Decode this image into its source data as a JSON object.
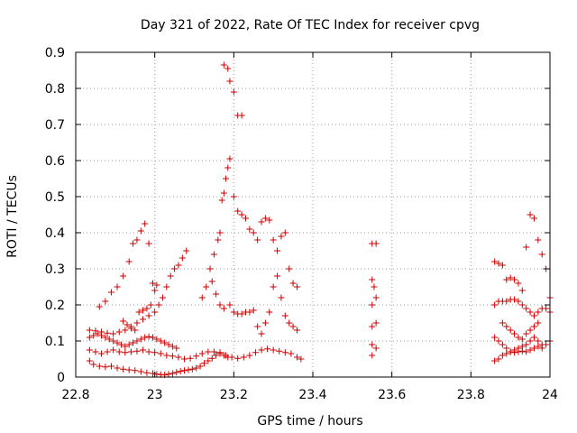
{
  "chart_data": {
    "type": "scatter",
    "title": "Day 321 of 2022, Rate Of TEC Index for receiver cpvg",
    "xlabel": "GPS time / hours",
    "ylabel": "ROTI / TECUs",
    "xlim": [
      22.8,
      24
    ],
    "ylim": [
      0,
      0.9
    ],
    "xticks": [
      22.8,
      23,
      23.2,
      23.4,
      23.6,
      23.8,
      24
    ],
    "xtick_labels": [
      "22.8",
      "23",
      "23.2",
      "23.4",
      "23.6",
      "23.8",
      "24"
    ],
    "yticks": [
      0,
      0.1,
      0.2,
      0.3,
      0.4,
      0.5,
      0.6,
      0.7,
      0.8,
      0.9
    ],
    "ytick_labels": [
      "0",
      "0.1",
      "0.2",
      "0.3",
      "0.4",
      "0.5",
      "0.6",
      "0.7",
      "0.8",
      "0.9"
    ],
    "grid": true,
    "legend": "none",
    "marker": "plus",
    "color": "#cc0000",
    "series": [
      {
        "points": [
          [
            22.835,
            0.045
          ],
          [
            22.845,
            0.035
          ],
          [
            22.86,
            0.03
          ],
          [
            22.875,
            0.028
          ],
          [
            22.89,
            0.03
          ],
          [
            22.905,
            0.025
          ],
          [
            22.92,
            0.022
          ],
          [
            22.935,
            0.02
          ],
          [
            22.95,
            0.018
          ],
          [
            22.965,
            0.015
          ],
          [
            22.98,
            0.012
          ],
          [
            22.995,
            0.01
          ],
          [
            23.005,
            0.008
          ],
          [
            23.015,
            0.007
          ],
          [
            23.025,
            0.006
          ],
          [
            23.035,
            0.008
          ],
          [
            23.045,
            0.01
          ],
          [
            23.055,
            0.013
          ],
          [
            23.065,
            0.016
          ],
          [
            23.075,
            0.018
          ],
          [
            23.085,
            0.02
          ],
          [
            23.095,
            0.022
          ],
          [
            23.105,
            0.025
          ],
          [
            23.115,
            0.03
          ],
          [
            23.125,
            0.038
          ],
          [
            23.135,
            0.045
          ],
          [
            23.145,
            0.052
          ],
          [
            23.155,
            0.06
          ],
          [
            23.165,
            0.065
          ],
          [
            23.175,
            0.06
          ],
          [
            23.185,
            0.055
          ],
          [
            22.835,
            0.075
          ],
          [
            22.85,
            0.07
          ],
          [
            22.865,
            0.065
          ],
          [
            22.88,
            0.07
          ],
          [
            22.895,
            0.075
          ],
          [
            22.91,
            0.07
          ],
          [
            22.925,
            0.068
          ],
          [
            22.94,
            0.07
          ],
          [
            22.955,
            0.072
          ],
          [
            22.97,
            0.075
          ],
          [
            22.985,
            0.07
          ],
          [
            23.0,
            0.068
          ],
          [
            23.015,
            0.065
          ],
          [
            23.03,
            0.06
          ],
          [
            23.045,
            0.058
          ],
          [
            23.06,
            0.055
          ],
          [
            23.075,
            0.05
          ],
          [
            23.09,
            0.052
          ],
          [
            23.105,
            0.058
          ],
          [
            23.12,
            0.065
          ],
          [
            23.135,
            0.07
          ],
          [
            23.15,
            0.07
          ],
          [
            23.165,
            0.068
          ],
          [
            23.18,
            0.06
          ],
          [
            23.195,
            0.055
          ],
          [
            23.21,
            0.052
          ],
          [
            23.225,
            0.055
          ],
          [
            23.24,
            0.06
          ],
          [
            23.255,
            0.068
          ],
          [
            23.27,
            0.075
          ],
          [
            23.285,
            0.078
          ],
          [
            23.3,
            0.075
          ],
          [
            23.315,
            0.072
          ],
          [
            23.33,
            0.068
          ],
          [
            23.345,
            0.065
          ],
          [
            23.36,
            0.055
          ],
          [
            23.37,
            0.05
          ],
          [
            22.835,
            0.11
          ],
          [
            22.845,
            0.115
          ],
          [
            22.855,
            0.12
          ],
          [
            22.865,
            0.115
          ],
          [
            22.875,
            0.11
          ],
          [
            22.885,
            0.105
          ],
          [
            22.895,
            0.1
          ],
          [
            22.905,
            0.095
          ],
          [
            22.915,
            0.09
          ],
          [
            22.925,
            0.085
          ],
          [
            22.935,
            0.09
          ],
          [
            22.945,
            0.095
          ],
          [
            22.955,
            0.1
          ],
          [
            22.965,
            0.105
          ],
          [
            22.975,
            0.11
          ],
          [
            22.985,
            0.112
          ],
          [
            22.995,
            0.11
          ],
          [
            23.005,
            0.105
          ],
          [
            23.015,
            0.1
          ],
          [
            23.025,
            0.095
          ],
          [
            23.035,
            0.09
          ],
          [
            23.045,
            0.085
          ],
          [
            23.055,
            0.08
          ],
          [
            22.835,
            0.13
          ],
          [
            22.85,
            0.128
          ],
          [
            22.865,
            0.125
          ],
          [
            22.88,
            0.122
          ],
          [
            22.895,
            0.12
          ],
          [
            22.91,
            0.125
          ],
          [
            22.925,
            0.13
          ],
          [
            22.94,
            0.14
          ],
          [
            22.955,
            0.15
          ],
          [
            22.97,
            0.16
          ],
          [
            22.985,
            0.17
          ],
          [
            23.0,
            0.18
          ],
          [
            23.01,
            0.2
          ],
          [
            23.02,
            0.22
          ],
          [
            23.03,
            0.25
          ],
          [
            23.04,
            0.28
          ],
          [
            23.05,
            0.3
          ],
          [
            23.06,
            0.31
          ],
          [
            23.07,
            0.33
          ],
          [
            23.08,
            0.35
          ],
          [
            22.86,
            0.195
          ],
          [
            22.875,
            0.21
          ],
          [
            22.89,
            0.235
          ],
          [
            22.905,
            0.25
          ],
          [
            22.92,
            0.28
          ],
          [
            22.935,
            0.32
          ],
          [
            22.945,
            0.37
          ],
          [
            22.955,
            0.38
          ],
          [
            22.965,
            0.405
          ],
          [
            22.975,
            0.425
          ],
          [
            22.985,
            0.37
          ],
          [
            22.92,
            0.155
          ],
          [
            22.93,
            0.145
          ],
          [
            22.94,
            0.135
          ],
          [
            22.95,
            0.13
          ],
          [
            22.96,
            0.18
          ],
          [
            22.97,
            0.185
          ],
          [
            22.98,
            0.19
          ],
          [
            22.99,
            0.2
          ],
          [
            22.995,
            0.26
          ],
          [
            23.005,
            0.255
          ],
          [
            23.0,
            0.24
          ],
          [
            23.12,
            0.22
          ],
          [
            23.13,
            0.25
          ],
          [
            23.14,
            0.3
          ],
          [
            23.15,
            0.34
          ],
          [
            23.16,
            0.38
          ],
          [
            23.165,
            0.4
          ],
          [
            23.17,
            0.49
          ],
          [
            23.175,
            0.51
          ],
          [
            23.18,
            0.55
          ],
          [
            23.185,
            0.58
          ],
          [
            23.19,
            0.605
          ],
          [
            23.2,
            0.5
          ],
          [
            23.21,
            0.46
          ],
          [
            23.22,
            0.45
          ],
          [
            23.23,
            0.44
          ],
          [
            23.24,
            0.41
          ],
          [
            23.25,
            0.4
          ],
          [
            23.26,
            0.38
          ],
          [
            23.27,
            0.43
          ],
          [
            23.28,
            0.44
          ],
          [
            23.29,
            0.435
          ],
          [
            23.3,
            0.38
          ],
          [
            23.31,
            0.35
          ],
          [
            23.32,
            0.39
          ],
          [
            23.33,
            0.4
          ],
          [
            23.34,
            0.3
          ],
          [
            23.35,
            0.26
          ],
          [
            23.36,
            0.25
          ],
          [
            23.175,
            0.865
          ],
          [
            23.185,
            0.855
          ],
          [
            23.19,
            0.82
          ],
          [
            23.2,
            0.79
          ],
          [
            23.21,
            0.725
          ],
          [
            23.22,
            0.725
          ],
          [
            23.19,
            0.2
          ],
          [
            23.2,
            0.18
          ],
          [
            23.21,
            0.175
          ],
          [
            23.22,
            0.175
          ],
          [
            23.23,
            0.18
          ],
          [
            23.24,
            0.18
          ],
          [
            23.25,
            0.185
          ],
          [
            23.26,
            0.14
          ],
          [
            23.27,
            0.12
          ],
          [
            23.28,
            0.15
          ],
          [
            23.29,
            0.18
          ],
          [
            23.3,
            0.25
          ],
          [
            23.31,
            0.28
          ],
          [
            23.32,
            0.22
          ],
          [
            23.33,
            0.17
          ],
          [
            23.34,
            0.15
          ],
          [
            23.35,
            0.14
          ],
          [
            23.36,
            0.13
          ],
          [
            23.145,
            0.265
          ],
          [
            23.155,
            0.23
          ],
          [
            23.165,
            0.2
          ],
          [
            23.175,
            0.19
          ],
          [
            23.55,
            0.37
          ],
          [
            23.56,
            0.37
          ],
          [
            23.55,
            0.27
          ],
          [
            23.555,
            0.25
          ],
          [
            23.56,
            0.22
          ],
          [
            23.55,
            0.2
          ],
          [
            23.56,
            0.15
          ],
          [
            23.55,
            0.14
          ],
          [
            23.55,
            0.09
          ],
          [
            23.56,
            0.08
          ],
          [
            23.55,
            0.06
          ],
          [
            23.86,
            0.32
          ],
          [
            23.87,
            0.315
          ],
          [
            23.88,
            0.31
          ],
          [
            23.86,
            0.2
          ],
          [
            23.87,
            0.21
          ],
          [
            23.88,
            0.21
          ],
          [
            23.89,
            0.21
          ],
          [
            23.9,
            0.215
          ],
          [
            23.91,
            0.215
          ],
          [
            23.92,
            0.21
          ],
          [
            23.93,
            0.2
          ],
          [
            23.94,
            0.19
          ],
          [
            23.95,
            0.18
          ],
          [
            23.96,
            0.17
          ],
          [
            23.97,
            0.18
          ],
          [
            23.98,
            0.19
          ],
          [
            23.99,
            0.19
          ],
          [
            24.0,
            0.18
          ],
          [
            23.86,
            0.11
          ],
          [
            23.87,
            0.1
          ],
          [
            23.88,
            0.09
          ],
          [
            23.89,
            0.08
          ],
          [
            23.9,
            0.07
          ],
          [
            23.91,
            0.075
          ],
          [
            23.92,
            0.08
          ],
          [
            23.93,
            0.085
          ],
          [
            23.94,
            0.09
          ],
          [
            23.95,
            0.1
          ],
          [
            23.96,
            0.11
          ],
          [
            23.97,
            0.1
          ],
          [
            23.98,
            0.09
          ],
          [
            23.99,
            0.09
          ],
          [
            24.0,
            0.1
          ],
          [
            23.86,
            0.045
          ],
          [
            23.87,
            0.05
          ],
          [
            23.88,
            0.06
          ],
          [
            23.89,
            0.065
          ],
          [
            23.9,
            0.07
          ],
          [
            23.91,
            0.068
          ],
          [
            23.92,
            0.07
          ],
          [
            23.93,
            0.072
          ],
          [
            23.94,
            0.07
          ],
          [
            23.95,
            0.075
          ],
          [
            23.96,
            0.08
          ],
          [
            23.97,
            0.085
          ],
          [
            23.98,
            0.08
          ],
          [
            23.89,
            0.27
          ],
          [
            23.9,
            0.275
          ],
          [
            23.91,
            0.27
          ],
          [
            23.92,
            0.26
          ],
          [
            23.93,
            0.24
          ],
          [
            23.94,
            0.36
          ],
          [
            23.95,
            0.45
          ],
          [
            23.96,
            0.44
          ],
          [
            23.97,
            0.38
          ],
          [
            23.98,
            0.34
          ],
          [
            23.99,
            0.3
          ],
          [
            24.0,
            0.22
          ],
          [
            23.88,
            0.15
          ],
          [
            23.89,
            0.14
          ],
          [
            23.9,
            0.13
          ],
          [
            23.91,
            0.12
          ],
          [
            23.92,
            0.11
          ],
          [
            23.93,
            0.105
          ],
          [
            23.94,
            0.12
          ],
          [
            23.95,
            0.13
          ],
          [
            23.96,
            0.14
          ],
          [
            23.97,
            0.15
          ]
        ]
      }
    ]
  }
}
